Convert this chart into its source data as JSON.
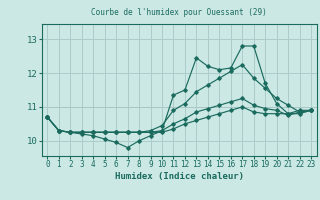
{
  "title": "Courbe de l'humidex pour Ouessant (29)",
  "xlabel": "Humidex (Indice chaleur)",
  "xlim": [
    -0.5,
    23.5
  ],
  "ylim": [
    9.55,
    13.45
  ],
  "yticks": [
    10,
    11,
    12,
    13
  ],
  "xticks": [
    0,
    1,
    2,
    3,
    4,
    5,
    6,
    7,
    8,
    9,
    10,
    11,
    12,
    13,
    14,
    15,
    16,
    17,
    18,
    19,
    20,
    21,
    22,
    23
  ],
  "bg_color": "#cce8e5",
  "grid_color": "#aaccca",
  "line_color": "#1a6b5e",
  "red_line_y": 11,
  "series": {
    "main": [
      10.7,
      10.3,
      10.25,
      10.2,
      10.15,
      10.05,
      9.95,
      9.8,
      10.0,
      10.15,
      10.3,
      11.35,
      11.5,
      12.45,
      12.2,
      12.1,
      12.15,
      12.8,
      12.8,
      11.7,
      11.1,
      10.8,
      10.9,
      10.9
    ],
    "line_upper": [
      10.7,
      10.3,
      10.25,
      10.25,
      10.25,
      10.25,
      10.25,
      10.25,
      10.25,
      10.3,
      10.45,
      10.9,
      11.1,
      11.45,
      11.65,
      11.85,
      12.05,
      12.25,
      11.85,
      11.55,
      11.25,
      11.05,
      10.85,
      10.9
    ],
    "line_lower": [
      10.7,
      10.3,
      10.25,
      10.25,
      10.25,
      10.25,
      10.25,
      10.25,
      10.25,
      10.25,
      10.3,
      10.5,
      10.65,
      10.85,
      10.95,
      11.05,
      11.15,
      11.25,
      11.05,
      10.95,
      10.9,
      10.75,
      10.85,
      10.9
    ],
    "line_flat": [
      10.7,
      10.3,
      10.25,
      10.25,
      10.25,
      10.25,
      10.25,
      10.25,
      10.25,
      10.25,
      10.25,
      10.35,
      10.5,
      10.6,
      10.7,
      10.8,
      10.9,
      11.0,
      10.85,
      10.8,
      10.8,
      10.8,
      10.8,
      10.9
    ]
  }
}
